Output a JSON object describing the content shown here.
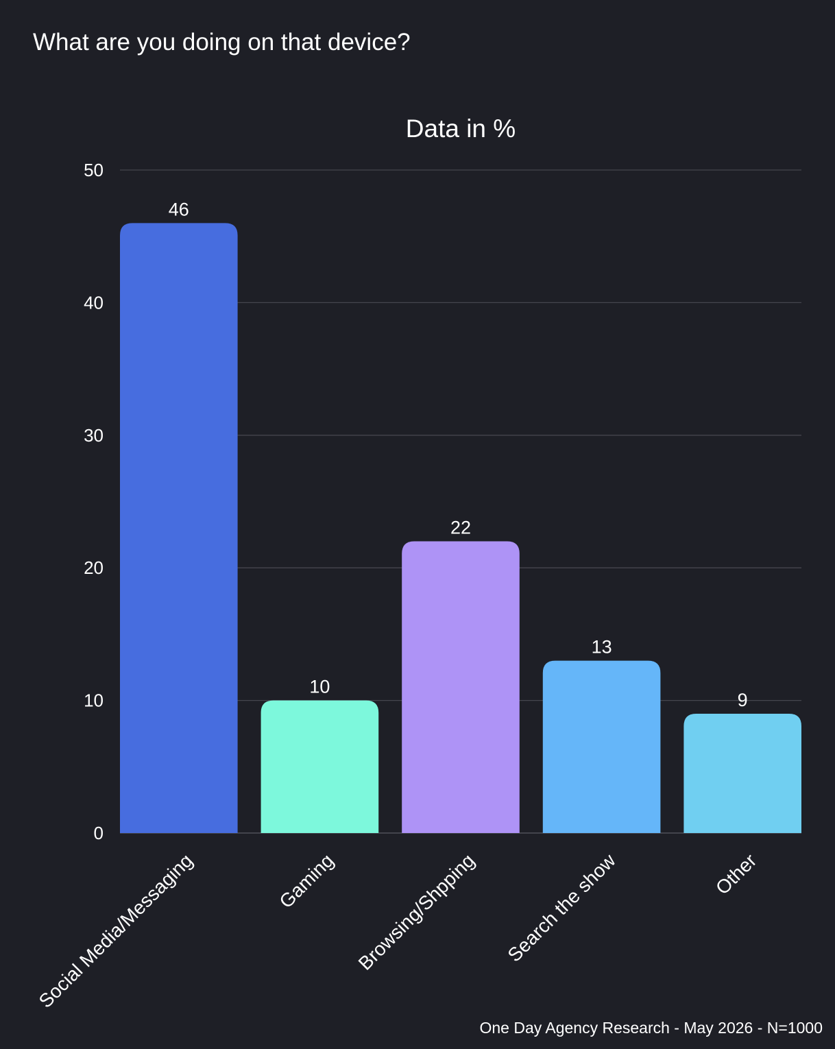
{
  "page": {
    "title": "What are you doing on that device?",
    "source": "One Day Agency Research - May 2026 - N=1000"
  },
  "chart_data": {
    "type": "bar",
    "title": "What are you doing on that device?",
    "subtitle": "Data in %",
    "categories": [
      "Social Media/Messaging",
      "Gaming",
      "Browsing/Shpping",
      "Search the show",
      "Other"
    ],
    "values": [
      46,
      10,
      22,
      13,
      9
    ],
    "colors": [
      "#476ddf",
      "#7df8dc",
      "#ae93f6",
      "#65b6f9",
      "#70cff1"
    ],
    "yticks": [
      0,
      10,
      20,
      30,
      40,
      50
    ],
    "ylim": [
      0,
      50
    ],
    "xlabel": "",
    "ylabel": "",
    "grid": true,
    "legend": "none",
    "data_labels": true
  }
}
